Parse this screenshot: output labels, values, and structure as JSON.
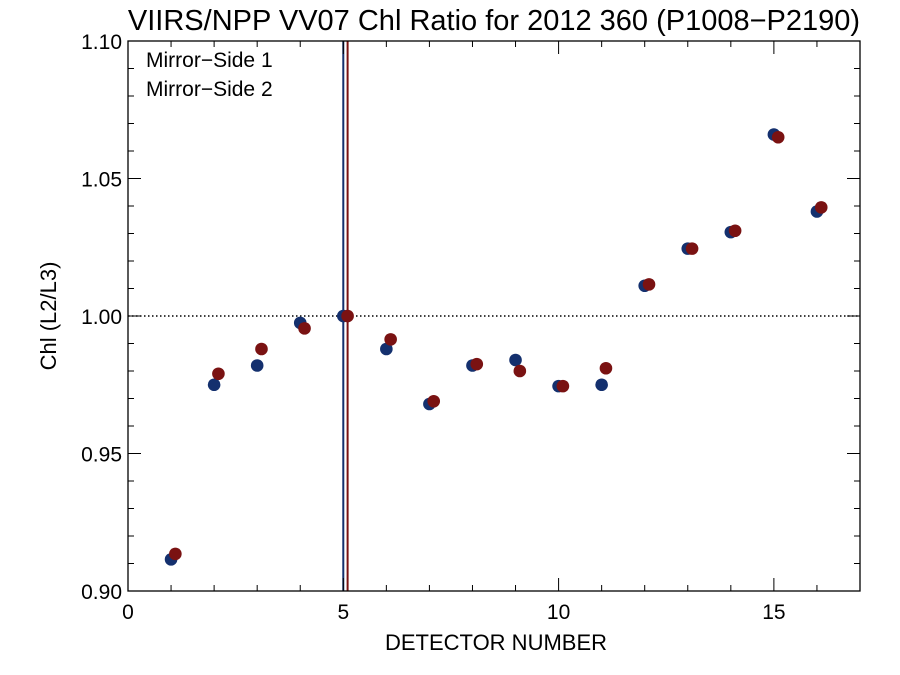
{
  "chart_data": {
    "type": "scatter",
    "title": "VIIRS/NPP VV07 Chl Ratio for 2012 360 (P1008−P2190)",
    "xlabel": "DETECTOR NUMBER",
    "ylabel": "Chl (L2/L3)",
    "xlim": [
      0,
      17
    ],
    "ylim": [
      0.9,
      1.1
    ],
    "x_ticks": [
      0,
      5,
      10,
      15
    ],
    "x_tick_labels": [
      "0",
      "5",
      "10",
      "15"
    ],
    "y_ticks": [
      0.9,
      0.95,
      1.0,
      1.05,
      1.1
    ],
    "y_tick_labels": [
      "0.90",
      "0.95",
      "1.00",
      "1.05",
      "1.10"
    ],
    "reference_line_y": 1.0,
    "reference_line_style": "dotted",
    "legend_position": "top-left",
    "series": [
      {
        "name": "Mirror−Side 1",
        "color": "#14306e",
        "x": [
          1,
          2,
          3,
          4,
          5,
          6,
          7,
          8,
          9,
          10,
          11,
          12,
          13,
          14,
          15,
          16
        ],
        "values": [
          0.9115,
          0.975,
          0.982,
          0.9975,
          1.0,
          0.988,
          0.968,
          0.982,
          0.984,
          0.9745,
          0.975,
          1.011,
          1.0245,
          1.0305,
          1.066,
          1.038
        ],
        "vertical_line_x": 5
      },
      {
        "name": "Mirror−Side 2",
        "color": "#7a1212",
        "x": [
          1.1,
          2.1,
          3.1,
          4.1,
          5.1,
          6.1,
          7.1,
          8.1,
          9.1,
          10.1,
          11.1,
          12.1,
          13.1,
          14.1,
          15.1,
          16.1
        ],
        "values": [
          0.9135,
          0.979,
          0.988,
          0.9955,
          1.0,
          0.9915,
          0.969,
          0.9825,
          0.98,
          0.9745,
          0.981,
          1.0115,
          1.0245,
          1.031,
          1.065,
          1.0395
        ],
        "vertical_line_x": 5.1
      }
    ]
  }
}
